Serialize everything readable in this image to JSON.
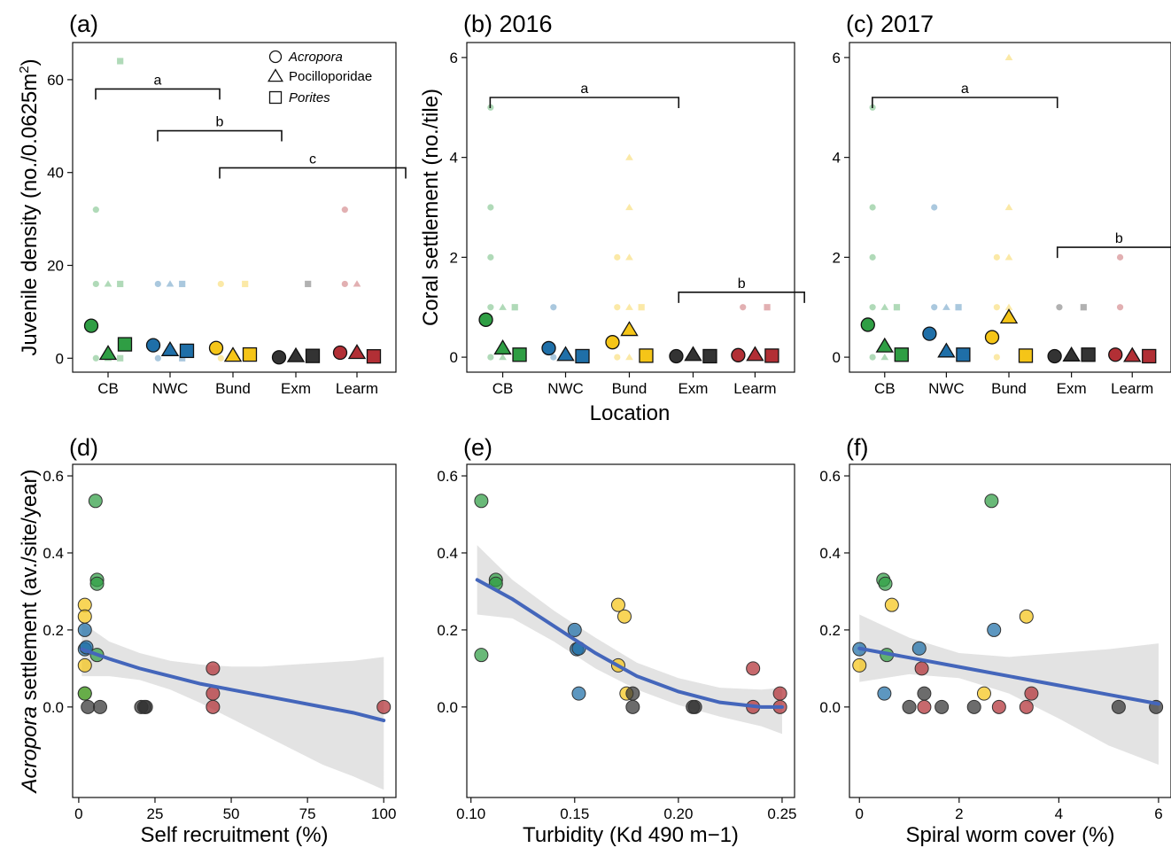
{
  "palette": {
    "CB": "#2f9e44",
    "NWC": "#1f6fa8",
    "Bund": "#f5c518",
    "Exm": "#333333",
    "Learm": "#b22f35",
    "fit": "#4466bb",
    "band": "#e3e3e3"
  },
  "shared": {
    "locations": [
      "CB",
      "NWC",
      "Bund",
      "Exm",
      "Learm"
    ],
    "location_xlabel": "Location",
    "top_ylabel_b": "Coral settlement (no./tile)",
    "bottom_ylabel_italic": "Acropora",
    "bottom_ylabel_rest": " settlement (av./site/year)"
  },
  "legend": {
    "items": [
      {
        "label": "Acropora",
        "italic": true,
        "shape": "circle"
      },
      {
        "label": "Pocilloporidae",
        "italic": false,
        "shape": "triangle"
      },
      {
        "label": "Porites",
        "italic": true,
        "shape": "square"
      }
    ]
  },
  "chart_data": [
    {
      "id": "a",
      "type": "scatter",
      "panel_label": "(a)",
      "title": "",
      "ylabel_main": "Juvenile density (no./0.0625m",
      "ylabel_sup": "2",
      "ylabel_end": ")",
      "categories": [
        "CB",
        "NWC",
        "Bund",
        "Exm",
        "Learm"
      ],
      "taxa": [
        "Acropora",
        "Pocilloporidae",
        "Porites"
      ],
      "ylim": [
        -3,
        68
      ],
      "yticks": [
        0,
        20,
        40,
        60
      ],
      "means": {
        "Acropora": [
          7,
          2.8,
          2.2,
          0.2,
          1.2
        ],
        "Pocilloporidae": [
          1,
          1.8,
          0.6,
          0.5,
          1.2
        ],
        "Porites": [
          3,
          1.6,
          0.8,
          0.5,
          0.4
        ]
      },
      "raw": [
        {
          "loc": "CB",
          "taxon": "Acropora",
          "ys": [
            32,
            16,
            0
          ]
        },
        {
          "loc": "CB",
          "taxon": "Pocilloporidae",
          "ys": [
            16,
            0
          ]
        },
        {
          "loc": "CB",
          "taxon": "Porites",
          "ys": [
            64,
            16,
            0
          ]
        },
        {
          "loc": "NWC",
          "taxon": "Acropora",
          "ys": [
            16,
            0
          ]
        },
        {
          "loc": "NWC",
          "taxon": "Pocilloporidae",
          "ys": [
            16
          ]
        },
        {
          "loc": "NWC",
          "taxon": "Porites",
          "ys": [
            16,
            0
          ]
        },
        {
          "loc": "Bund",
          "taxon": "Acropora",
          "ys": [
            16,
            0
          ]
        },
        {
          "loc": "Bund",
          "taxon": "Porites",
          "ys": [
            16
          ]
        },
        {
          "loc": "Exm",
          "taxon": "Porites",
          "ys": [
            16
          ]
        },
        {
          "loc": "Learm",
          "taxon": "Acropora",
          "ys": [
            32,
            16
          ]
        },
        {
          "loc": "Learm",
          "taxon": "Pocilloporidae",
          "ys": [
            16
          ]
        }
      ],
      "brackets": [
        {
          "from": -0.2,
          "to": 1.8,
          "y": 58,
          "label": "a"
        },
        {
          "from": 0.8,
          "to": 2.8,
          "y": 49,
          "label": "b"
        },
        {
          "from": 1.8,
          "to": 4.8,
          "y": 41,
          "label": "c"
        }
      ]
    },
    {
      "id": "b",
      "type": "scatter",
      "panel_label": "(b) 2016",
      "title": "2016",
      "categories": [
        "CB",
        "NWC",
        "Bund",
        "Exm",
        "Learm"
      ],
      "taxa": [
        "Acropora",
        "Pocilloporidae",
        "Porites"
      ],
      "ylim": [
        -0.3,
        6.3
      ],
      "yticks": [
        0,
        2,
        4,
        6
      ],
      "means": {
        "Acropora": [
          0.75,
          0.18,
          0.3,
          0.02,
          0.04
        ],
        "Pocilloporidae": [
          0.18,
          0.05,
          0.55,
          0.05,
          0.05
        ],
        "Porites": [
          0.05,
          0.02,
          0.03,
          0.02,
          0.03
        ]
      },
      "raw": [
        {
          "loc": "CB",
          "taxon": "Acropora",
          "ys": [
            5,
            3,
            2,
            1,
            0
          ]
        },
        {
          "loc": "CB",
          "taxon": "Pocilloporidae",
          "ys": [
            1,
            0
          ]
        },
        {
          "loc": "CB",
          "taxon": "Porites",
          "ys": [
            1
          ]
        },
        {
          "loc": "NWC",
          "taxon": "Acropora",
          "ys": [
            1,
            0
          ]
        },
        {
          "loc": "Bund",
          "taxon": "Acropora",
          "ys": [
            2,
            1,
            0
          ]
        },
        {
          "loc": "Bund",
          "taxon": "Pocilloporidae",
          "ys": [
            4,
            3,
            2,
            1,
            0
          ]
        },
        {
          "loc": "Bund",
          "taxon": "Porites",
          "ys": [
            1
          ]
        },
        {
          "loc": "Learm",
          "taxon": "Acropora",
          "ys": [
            1
          ]
        },
        {
          "loc": "Learm",
          "taxon": "Porites",
          "ys": [
            1
          ]
        }
      ],
      "brackets": [
        {
          "from": -0.2,
          "to": 2.8,
          "y": 5.2,
          "label": "a"
        },
        {
          "from": 2.8,
          "to": 4.8,
          "y": 1.3,
          "label": "b"
        }
      ]
    },
    {
      "id": "c",
      "type": "scatter",
      "panel_label": "(c) 2017",
      "title": "2017",
      "categories": [
        "CB",
        "NWC",
        "Bund",
        "Exm",
        "Learm"
      ],
      "taxa": [
        "Acropora",
        "Pocilloporidae",
        "Porites"
      ],
      "ylim": [
        -0.3,
        6.3
      ],
      "yticks": [
        0,
        2,
        4,
        6
      ],
      "means": {
        "Acropora": [
          0.65,
          0.47,
          0.4,
          0.02,
          0.05
        ],
        "Pocilloporidae": [
          0.22,
          0.12,
          0.8,
          0.04,
          0.03
        ],
        "Porites": [
          0.05,
          0.05,
          0.03,
          0.05,
          0.02
        ]
      },
      "raw": [
        {
          "loc": "CB",
          "taxon": "Acropora",
          "ys": [
            5,
            3,
            2,
            1,
            0
          ]
        },
        {
          "loc": "CB",
          "taxon": "Pocilloporidae",
          "ys": [
            1,
            0
          ]
        },
        {
          "loc": "CB",
          "taxon": "Porites",
          "ys": [
            1
          ]
        },
        {
          "loc": "NWC",
          "taxon": "Acropora",
          "ys": [
            3,
            1
          ]
        },
        {
          "loc": "NWC",
          "taxon": "Pocilloporidae",
          "ys": [
            1
          ]
        },
        {
          "loc": "NWC",
          "taxon": "Porites",
          "ys": [
            1
          ]
        },
        {
          "loc": "Bund",
          "taxon": "Acropora",
          "ys": [
            2,
            1,
            0
          ]
        },
        {
          "loc": "Bund",
          "taxon": "Pocilloporidae",
          "ys": [
            6,
            3,
            2,
            1
          ]
        },
        {
          "loc": "Exm",
          "taxon": "Acropora",
          "ys": [
            1
          ]
        },
        {
          "loc": "Exm",
          "taxon": "Porites",
          "ys": [
            1
          ]
        },
        {
          "loc": "Learm",
          "taxon": "Acropora",
          "ys": [
            2,
            1
          ]
        }
      ],
      "brackets": [
        {
          "from": -0.2,
          "to": 2.8,
          "y": 5.2,
          "label": "a"
        },
        {
          "from": 2.8,
          "to": 4.8,
          "y": 2.2,
          "label": "b"
        }
      ]
    },
    {
      "id": "d",
      "type": "scatter",
      "panel_label": "(d)",
      "xlabel": "Self recruitment (%)",
      "xlim": [
        -2,
        104
      ],
      "ylim": [
        -0.235,
        0.63
      ],
      "xticks": [
        0,
        25,
        50,
        75,
        100
      ],
      "xtick_labels": [
        "0",
        "25",
        "50",
        "75",
        "100"
      ],
      "yticks": [
        0,
        0.2,
        0.4,
        0.6
      ],
      "ytick_labels": [
        "0.0",
        "0.2",
        "0.4",
        "0.6"
      ],
      "points": [
        {
          "x": 5.5,
          "y": 0.535,
          "loc": "CB"
        },
        {
          "x": 6,
          "y": 0.33,
          "loc": "CB"
        },
        {
          "x": 6,
          "y": 0.32,
          "loc": "CB"
        },
        {
          "x": 6,
          "y": 0.135,
          "loc": "CB"
        },
        {
          "x": 2,
          "y": 0.265,
          "loc": "Bund"
        },
        {
          "x": 2,
          "y": 0.235,
          "loc": "Bund"
        },
        {
          "x": 2,
          "y": 0.108,
          "loc": "Bund"
        },
        {
          "x": 2,
          "y": 0.2,
          "loc": "NWC"
        },
        {
          "x": 2,
          "y": 0.15,
          "loc": "NWC"
        },
        {
          "x": 2.5,
          "y": 0.155,
          "loc": "NWC"
        },
        {
          "x": 2,
          "y": 0.035,
          "loc": "Bund"
        },
        {
          "x": 2,
          "y": 0.035,
          "loc": "CB"
        },
        {
          "x": 3,
          "y": 0,
          "loc": "Exm"
        },
        {
          "x": 7,
          "y": 0,
          "loc": "Exm"
        },
        {
          "x": 20.5,
          "y": 0,
          "loc": "Exm"
        },
        {
          "x": 21.5,
          "y": 0,
          "loc": "Exm"
        },
        {
          "x": 22,
          "y": 0,
          "loc": "Exm"
        },
        {
          "x": 44,
          "y": 0.1,
          "loc": "Learm"
        },
        {
          "x": 44,
          "y": 0.035,
          "loc": "Learm"
        },
        {
          "x": 44,
          "y": 0,
          "loc": "Learm"
        },
        {
          "x": 100,
          "y": 0,
          "loc": "Learm"
        }
      ],
      "fit": {
        "x": [
          1,
          10,
          20,
          30,
          40,
          50,
          60,
          70,
          80,
          90,
          100
        ],
        "y": [
          0.15,
          0.125,
          0.1,
          0.08,
          0.06,
          0.045,
          0.03,
          0.015,
          0.0,
          -0.015,
          -0.035
        ],
        "lower": [
          0.08,
          0.08,
          0.07,
          0.045,
          0.01,
          -0.03,
          -0.07,
          -0.11,
          -0.15,
          -0.18,
          -0.215
        ],
        "upper": [
          0.22,
          0.17,
          0.14,
          0.12,
          0.11,
          0.105,
          0.105,
          0.11,
          0.115,
          0.12,
          0.13
        ]
      }
    },
    {
      "id": "e",
      "type": "scatter",
      "panel_label": "(e)",
      "xlabel": "Turbidity (Kd 490 m−1)",
      "xlim": [
        0.098,
        0.256
      ],
      "ylim": [
        -0.235,
        0.63
      ],
      "xticks": [
        0.1,
        0.15,
        0.2,
        0.25
      ],
      "xtick_labels": [
        "0.10",
        "0.15",
        "0.20",
        "0.25"
      ],
      "yticks": [
        0,
        0.2,
        0.4,
        0.6
      ],
      "ytick_labels": [
        "0.0",
        "0.2",
        "0.4",
        "0.6"
      ],
      "points": [
        {
          "x": 0.105,
          "y": 0.535,
          "loc": "CB"
        },
        {
          "x": 0.112,
          "y": 0.33,
          "loc": "CB"
        },
        {
          "x": 0.112,
          "y": 0.32,
          "loc": "CB"
        },
        {
          "x": 0.105,
          "y": 0.135,
          "loc": "CB"
        },
        {
          "x": 0.15,
          "y": 0.2,
          "loc": "NWC"
        },
        {
          "x": 0.151,
          "y": 0.15,
          "loc": "NWC"
        },
        {
          "x": 0.152,
          "y": 0.152,
          "loc": "NWC"
        },
        {
          "x": 0.152,
          "y": 0.035,
          "loc": "NWC"
        },
        {
          "x": 0.171,
          "y": 0.265,
          "loc": "Bund"
        },
        {
          "x": 0.174,
          "y": 0.235,
          "loc": "Bund"
        },
        {
          "x": 0.171,
          "y": 0.108,
          "loc": "Bund"
        },
        {
          "x": 0.175,
          "y": 0.035,
          "loc": "Bund"
        },
        {
          "x": 0.178,
          "y": 0.035,
          "loc": "Exm"
        },
        {
          "x": 0.178,
          "y": 0,
          "loc": "Exm"
        },
        {
          "x": 0.207,
          "y": 0,
          "loc": "Exm"
        },
        {
          "x": 0.208,
          "y": 0,
          "loc": "Exm"
        },
        {
          "x": 0.236,
          "y": 0.1,
          "loc": "Learm"
        },
        {
          "x": 0.236,
          "y": 0,
          "loc": "Learm"
        },
        {
          "x": 0.249,
          "y": 0.035,
          "loc": "Learm"
        },
        {
          "x": 0.249,
          "y": 0,
          "loc": "Learm"
        }
      ],
      "fit": {
        "x": [
          0.103,
          0.12,
          0.14,
          0.16,
          0.18,
          0.2,
          0.22,
          0.24,
          0.25
        ],
        "y": [
          0.33,
          0.28,
          0.21,
          0.14,
          0.08,
          0.04,
          0.012,
          0.0,
          0.0
        ],
        "lower": [
          0.24,
          0.23,
          0.17,
          0.1,
          0.045,
          0.005,
          -0.025,
          -0.05,
          -0.07
        ],
        "upper": [
          0.42,
          0.33,
          0.25,
          0.18,
          0.115,
          0.075,
          0.05,
          0.045,
          0.05
        ]
      }
    },
    {
      "id": "f",
      "type": "scatter",
      "panel_label": "(f)",
      "xlabel": "Spiral worm cover (%)",
      "xlim": [
        -0.2,
        6.25
      ],
      "ylim": [
        -0.235,
        0.63
      ],
      "xticks": [
        0,
        2,
        4,
        6
      ],
      "xtick_labels": [
        "0",
        "2",
        "4",
        "6"
      ],
      "yticks": [
        0,
        0.2,
        0.4,
        0.6
      ],
      "ytick_labels": [
        "0.0",
        "0.2",
        "0.4",
        "0.6"
      ],
      "points": [
        {
          "x": 2.65,
          "y": 0.535,
          "loc": "CB"
        },
        {
          "x": 0.48,
          "y": 0.33,
          "loc": "CB"
        },
        {
          "x": 0.52,
          "y": 0.32,
          "loc": "CB"
        },
        {
          "x": 0.55,
          "y": 0.135,
          "loc": "CB"
        },
        {
          "x": 0.65,
          "y": 0.265,
          "loc": "Bund"
        },
        {
          "x": 3.35,
          "y": 0.235,
          "loc": "Bund"
        },
        {
          "x": 0,
          "y": 0.108,
          "loc": "Bund"
        },
        {
          "x": 2.5,
          "y": 0.035,
          "loc": "Bund"
        },
        {
          "x": 0,
          "y": 0.15,
          "loc": "NWC"
        },
        {
          "x": 1.2,
          "y": 0.152,
          "loc": "NWC"
        },
        {
          "x": 2.7,
          "y": 0.2,
          "loc": "NWC"
        },
        {
          "x": 0.5,
          "y": 0.035,
          "loc": "NWC"
        },
        {
          "x": 1,
          "y": 0,
          "loc": "Exm"
        },
        {
          "x": 1.3,
          "y": 0.035,
          "loc": "Exm"
        },
        {
          "x": 1.65,
          "y": 0,
          "loc": "Exm"
        },
        {
          "x": 2.3,
          "y": 0,
          "loc": "Exm"
        },
        {
          "x": 5.2,
          "y": 0,
          "loc": "Exm"
        },
        {
          "x": 5.95,
          "y": 0,
          "loc": "Exm"
        },
        {
          "x": 1.25,
          "y": 0.1,
          "loc": "Learm"
        },
        {
          "x": 1.3,
          "y": 0,
          "loc": "Learm"
        },
        {
          "x": 2.8,
          "y": 0,
          "loc": "Learm"
        },
        {
          "x": 3.35,
          "y": 0,
          "loc": "Learm"
        },
        {
          "x": 3.45,
          "y": 0.035,
          "loc": "Learm"
        }
      ],
      "fit": {
        "x": [
          0,
          1,
          2,
          3,
          4,
          5,
          6
        ],
        "y": [
          0.152,
          0.128,
          0.104,
          0.08,
          0.056,
          0.032,
          0.008
        ],
        "lower": [
          0.065,
          0.085,
          0.075,
          0.035,
          -0.03,
          -0.1,
          -0.15
        ],
        "upper": [
          0.24,
          0.18,
          0.14,
          0.13,
          0.14,
          0.15,
          0.165
        ]
      }
    }
  ]
}
